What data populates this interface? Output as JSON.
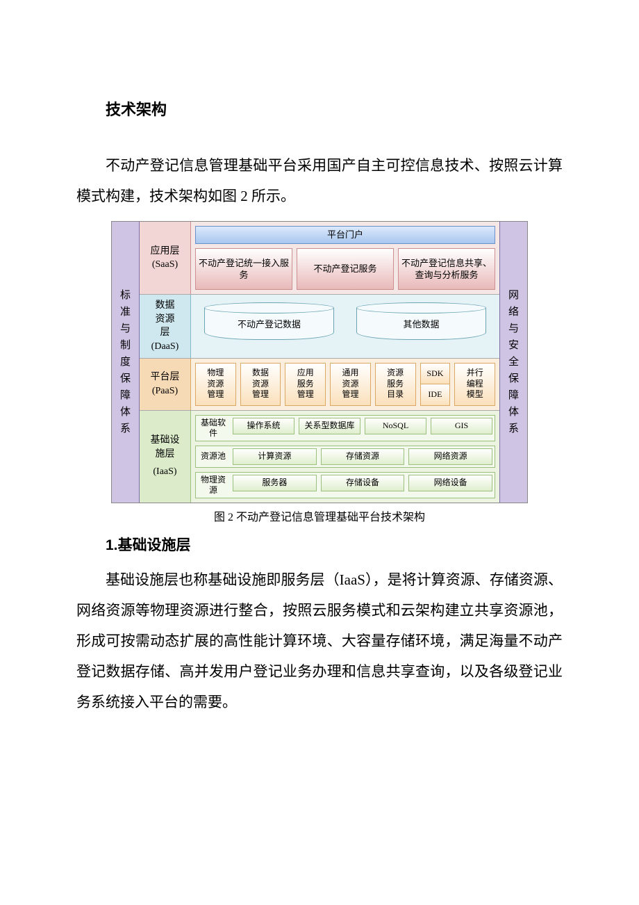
{
  "doc": {
    "title": "技术架构",
    "intro": "不动产登记信息管理基础平台采用国产自主可控信息技术、按照云计算模式构建，技术架构如图 2 所示。",
    "caption": "图 2 不动产登记信息管理基础平台技术架构",
    "section1_title": "1.基础设施层",
    "section1_body": "基础设施层也称基础设施即服务层（IaaS），是将计算资源、存储资源、网络资源等物理资源进行整合，按照云服务模式和云架构建立共享资源池，形成可按需动态扩展的高性能计算环境、大容量存储环境，满足海量不动产登记数据存储、高并发用户登记业务办理和信息共享查询，以及各级登记业务系统接入平台的需要。"
  },
  "diagram": {
    "left_pillar": {
      "text": "标准与制度保障体系",
      "bg": "#cfc4e4",
      "border": "#7c6fa8"
    },
    "right_pillar": {
      "text": "网络与安全保障体系",
      "bg": "#cfc4e4",
      "border": "#7c6fa8"
    },
    "saas": {
      "label_line1": "应用层",
      "label_line2": "(SaaS)",
      "label_bg": "#f2d6d6",
      "label_border": "#cc8f8f",
      "body_bg": "#f6e7e7",
      "portal": {
        "text": "平台门户",
        "bg_top": "#dbe9fb",
        "bg_bot": "#a9c7ef",
        "border": "#6b8fc9"
      },
      "apps": [
        {
          "text": "不动产登记统一接入服务"
        },
        {
          "text": "不动产登记服务"
        },
        {
          "text": "不动产登记信息共享、查询与分析服务"
        }
      ],
      "app_bg_top": "#ffffff",
      "app_bg_bot": "#e9b9b9",
      "app_border": "#cc8f8f"
    },
    "daas": {
      "label_line1": "数据",
      "label_line2": "资源",
      "label_line3": "层",
      "label_line4": "(DaaS)",
      "label_bg": "#cfe8ef",
      "label_border": "#7fb7c6",
      "body_bg": "#e5f2f6",
      "cylinders": [
        {
          "text": "不动产登记数据"
        },
        {
          "text": "其他数据"
        }
      ],
      "cyl_fill": "#f5fbfd",
      "cyl_border": "#6aa4b4"
    },
    "paas": {
      "label_line1": "平台层",
      "label_line2": "(PaaS)",
      "label_bg": "#f6d9b5",
      "label_border": "#d9a864",
      "body_bg": "#fbeedd",
      "items": [
        "物理资源管理",
        "数据资源管理",
        "应用服务管理",
        "通用资源管理",
        "资源服务目录"
      ],
      "right_stack_top": "SDK",
      "right_stack_bottom": "IDE",
      "right_item": "并行编程模型",
      "item_bg_top": "#ffffff",
      "item_bg_bot": "#fbe0bb",
      "item_border": "#d9a864"
    },
    "iaas": {
      "label_line1": "基础设",
      "label_line2": "施层",
      "label_line3": "(IaaS)",
      "label_bg": "#dceccb",
      "label_border": "#9bbf7d",
      "body_bg": "#ecf4e1",
      "row_border": "#9bbf7d",
      "row_bg": "#f4f9ee",
      "item_bg_top": "#ffffff",
      "item_bg_bot": "#dfeecd",
      "item_border": "#9bbf7d",
      "rows": [
        {
          "label": "基础软件",
          "items": [
            "操作系统",
            "关系型数据库",
            "NoSQL",
            "GIS"
          ]
        },
        {
          "label": "资源池",
          "items": [
            "计算资源",
            "存储资源",
            "网络资源"
          ]
        },
        {
          "label": "物理资源",
          "items": [
            "服务器",
            "存储设备",
            "网络设备"
          ]
        }
      ]
    }
  }
}
